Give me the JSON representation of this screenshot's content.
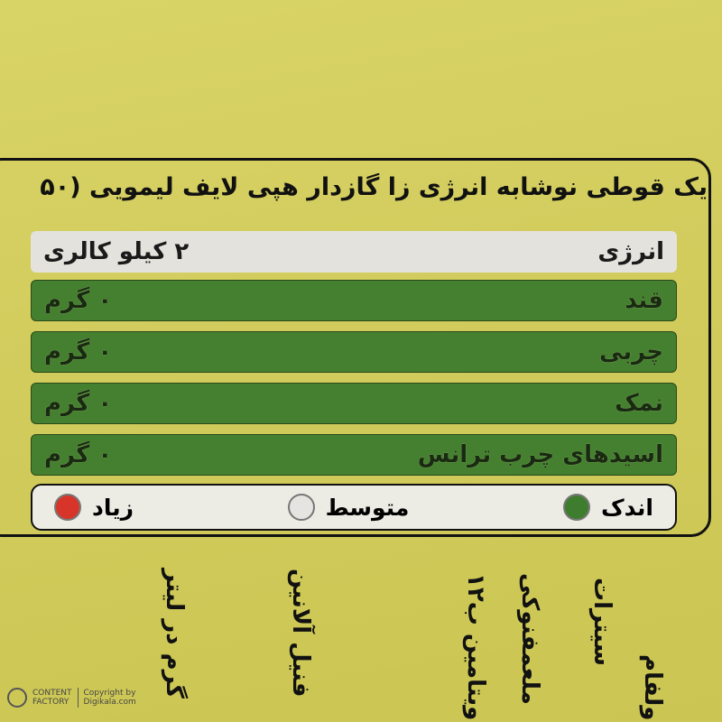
{
  "label": {
    "title": "یک قوطی نوشابه انرژی زا گازدار هپی لایف لیمویی (۵۰",
    "energy": {
      "name": "انرژی",
      "value": "۲ کیلو کالری"
    },
    "rows": [
      {
        "name": "قند",
        "value": "۰ گرم"
      },
      {
        "name": "چربی",
        "value": "۰ گرم"
      },
      {
        "name": "نمک",
        "value": "۰ گرم"
      },
      {
        "name": "اسیدهای چرب ترانس",
        "value": "۰ گرم"
      }
    ],
    "legend": [
      {
        "label": "اندک",
        "color": "#3f7d2e"
      },
      {
        "label": "متوسط",
        "color": "#e6e4e0"
      },
      {
        "label": "زیاد",
        "color": "#d8352a"
      }
    ]
  },
  "vertical_texts": [
    "گرم در لیتر",
    "فنیل آلانین",
    "ویتامین ب۱۲",
    "ملعمفنوکی",
    "سیترات",
    "ولفام"
  ],
  "watermark": {
    "brand_line1": "CONTENT",
    "brand_line2": "FACTORY",
    "copyright": "Copyright by",
    "site": "Digikala.com"
  }
}
